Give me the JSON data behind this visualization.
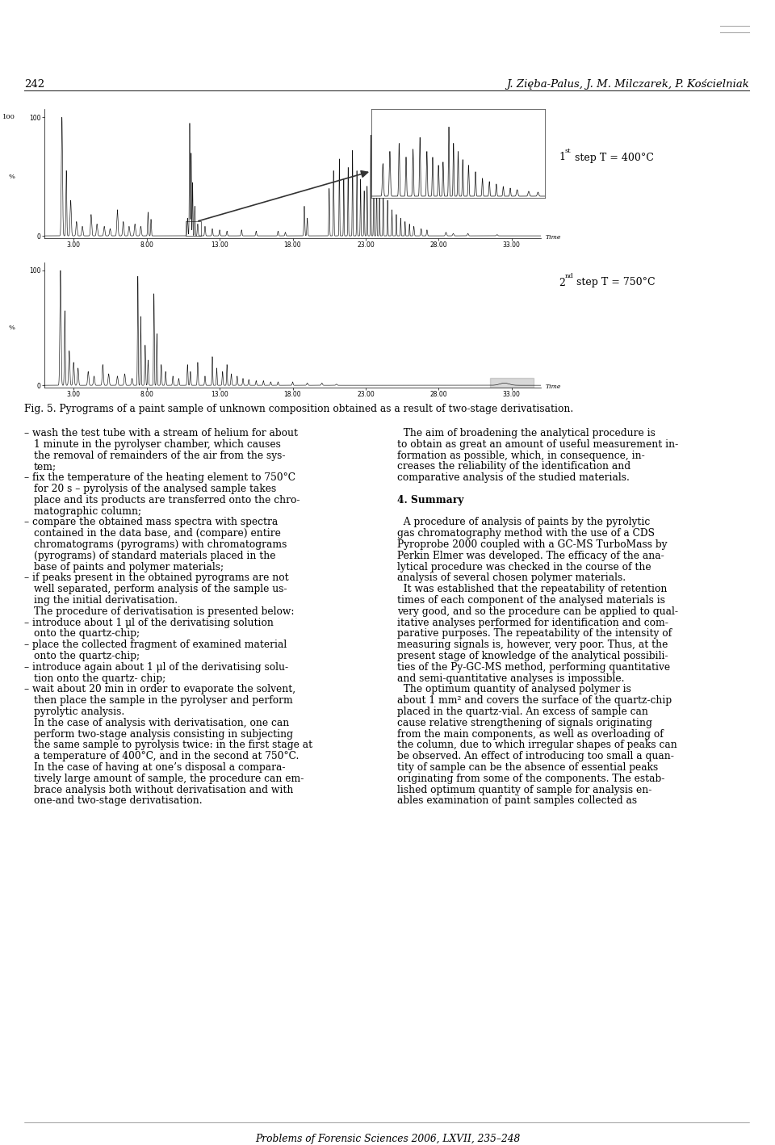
{
  "page_number": "242",
  "header_right": "J. Zięba-Palus, J. M. Milczarek, P. Kościelniak",
  "fig_caption": "Fig. 5. Pyrograms of a paint sample of unknown composition obtained as a result of two-stage derivatisation.",
  "label1_super": "st",
  "label1": " step T = 400°C",
  "label2_super": "nd",
  "label2": " step T = 750°C",
  "footer": "Problems of Forensic Sciences 2006, LXVII, 235–248",
  "left_col_text": [
    [
      "–",
      "wash the test tube with a stream of helium for about"
    ],
    [
      "",
      "1 minute in the pyrolyser chamber, which causes"
    ],
    [
      "",
      "the removal of remainders of the air from the sys-"
    ],
    [
      "",
      "tem;"
    ],
    [
      "–",
      "fix the temperature of the heating element to 750°C"
    ],
    [
      "",
      "for 20 s – pyrolysis of the analysed sample takes"
    ],
    [
      "",
      "place and its products are transferred onto the chro-"
    ],
    [
      "",
      "matographic column;"
    ],
    [
      "–",
      "compare the obtained mass spectra with spectra"
    ],
    [
      "",
      "contained in the data base, and (compare) entire"
    ],
    [
      "",
      "chromatograms (pyrograms) with chromatograms"
    ],
    [
      "",
      "(pyrograms) of standard materials placed in the"
    ],
    [
      "",
      "base of paints and polymer materials;"
    ],
    [
      "–",
      "if peaks present in the obtained pyrograms are not"
    ],
    [
      "",
      "well separated, perform analysis of the sample us-"
    ],
    [
      "",
      "ing the initial derivatisation."
    ],
    [
      "",
      "The procedure of derivatisation is presented below:"
    ],
    [
      "–",
      "introduce about 1 μl of the derivatising solution"
    ],
    [
      "",
      "onto the quartz-chip;"
    ],
    [
      "–",
      "place the collected fragment of examined material"
    ],
    [
      "",
      "onto the quartz-chip;"
    ],
    [
      "–",
      "introduce again about 1 μl of the derivatising solu-"
    ],
    [
      "",
      "tion onto the quartz- chip;"
    ],
    [
      "–",
      "wait about 20 min in order to evaporate the solvent,"
    ],
    [
      "",
      "then place the sample in the pyrolyser and perform"
    ],
    [
      "",
      "pyrolytic analysis."
    ],
    [
      "",
      "In the case of analysis with derivatisation, one can"
    ],
    [
      "",
      "perform two-stage analysis consisting in subjecting"
    ],
    [
      "",
      "the same sample to pyrolysis twice: in the first stage at"
    ],
    [
      "",
      "a temperature of 400°C, and in the second at 750°C."
    ],
    [
      "",
      "In the case of having at one’s disposal a compara-"
    ],
    [
      "",
      "tively large amount of sample, the procedure can em-"
    ],
    [
      "",
      "brace analysis both without derivatisation and with"
    ],
    [
      "",
      "one-and two-stage derivatisation."
    ]
  ],
  "right_col_text": [
    "  The aim of broadening the analytical procedure is",
    "to obtain as great an amount of useful measurement in-",
    "formation as possible, which, in consequence, in-",
    "creases the reliability of the identification and",
    "comparative analysis of the studied materials.",
    "",
    "4. Summary",
    "",
    "  A procedure of analysis of paints by the pyrolytic",
    "gas chromatography method with the use of a CDS",
    "Pyroprobe 2000 coupled with a GC-MS TurboMass by",
    "Perkin Elmer was developed. The efficacy of the ana-",
    "lytical procedure was checked in the course of the",
    "analysis of several chosen polymer materials.",
    "  It was established that the repeatability of retention",
    "times of each component of the analysed materials is",
    "very good, and so the procedure can be applied to qual-",
    "itative analyses performed for identification and com-",
    "parative purposes. The repeatability of the intensity of",
    "measuring signals is, however, very poor. Thus, at the",
    "present stage of knowledge of the analytical possibili-",
    "ties of the Py-GC-MS method, performing quantitative",
    "and semi-quantitative analyses is impossible.",
    "  The optimum quantity of analysed polymer is",
    "about 1 mm² and covers the surface of the quartz-chip",
    "placed in the quartz-vial. An excess of sample can",
    "cause relative strengthening of signals originating",
    "from the main components, as well as overloading of",
    "the column, due to which irregular shapes of peaks can",
    "be observed. An effect of introducing too small a quan-",
    "tity of sample can be the absence of essential peaks",
    "originating from some of the components. The estab-",
    "lished optimum quantity of sample for analysis en-",
    "ables examination of paint samples collected as"
  ],
  "background_color": "#ffffff",
  "text_color": "#000000"
}
